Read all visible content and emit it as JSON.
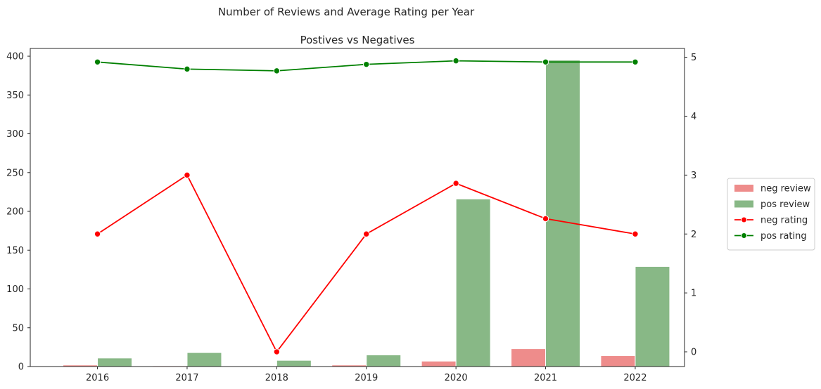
{
  "chart_data": {
    "type": "bar",
    "title": "Number of Reviews and Average Rating per Year",
    "subtitle": "Postives vs Negatives",
    "categories": [
      "2016",
      "2017",
      "2018",
      "2019",
      "2020",
      "2021",
      "2022"
    ],
    "xlabel": "",
    "ylabel": "",
    "ylabel_right": "",
    "ylim": [
      0,
      410
    ],
    "y_ticks": [
      0,
      50,
      100,
      150,
      200,
      250,
      300,
      350,
      400
    ],
    "ylim_right": [
      -0.25,
      5.15
    ],
    "y_ticks_right": [
      0,
      1,
      2,
      3,
      4,
      5
    ],
    "grid": false,
    "legend_position": "outside-right",
    "series": [
      {
        "name": "neg review",
        "kind": "bar",
        "axis": "left",
        "color": "#ee8c8b",
        "values": [
          2,
          1,
          0,
          2,
          7,
          23,
          14
        ]
      },
      {
        "name": "pos review",
        "kind": "bar",
        "axis": "left",
        "color": "#88b886",
        "values": [
          11,
          18,
          8,
          15,
          216,
          395,
          129
        ]
      },
      {
        "name": "neg rating",
        "kind": "line",
        "axis": "right",
        "color": "#ff0000",
        "values": [
          2,
          3,
          0,
          2,
          2.86,
          2.26,
          2
        ]
      },
      {
        "name": "pos rating",
        "kind": "line",
        "axis": "right",
        "color": "#008000",
        "values": [
          4.92,
          4.8,
          4.77,
          4.88,
          4.94,
          4.92,
          4.92
        ]
      }
    ]
  }
}
